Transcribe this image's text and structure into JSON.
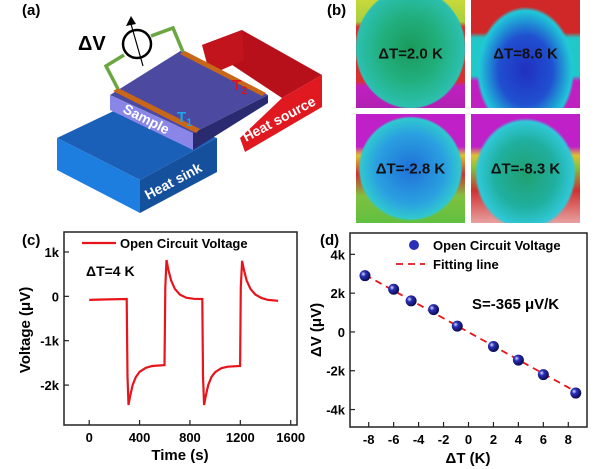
{
  "panels": {
    "a": {
      "label": "(a)",
      "delta_v": "ΔV",
      "sample": "Sample",
      "heat_sink": "Heat sink",
      "heat_source": "Heat source",
      "t1": "T",
      "t1_sub": "1",
      "t2": "T",
      "t2_sub": "2",
      "colors": {
        "heat_sink": "#1f6fd6",
        "heat_source": "#d8101a",
        "sample": "#4b4aa0",
        "electrode": "#c8661a",
        "wire": "#6aa641",
        "t1": "#1aa7e6",
        "t2": "#e0101a"
      }
    },
    "b": {
      "label": "(b)",
      "images": [
        {
          "text": "ΔT=2.0 K"
        },
        {
          "text": "ΔT=8.6 K"
        },
        {
          "text": "ΔT=-2.8 K"
        },
        {
          "text": "ΔT=-8.3 K"
        }
      ]
    },
    "c": {
      "label": "(c)"
    },
    "d": {
      "label": "(d)"
    }
  },
  "chart_data": [
    {
      "type": "line",
      "xlabel": "Time (s)",
      "ylabel": "Voltage (μV)",
      "xlim": [
        -200,
        1650
      ],
      "ylim": [
        -2900,
        1450
      ],
      "xticks": [
        0,
        400,
        800,
        1200,
        1600
      ],
      "xtick_labels": [
        "0",
        "400",
        "800",
        "1200",
        "1600"
      ],
      "yticks": [
        1000,
        0,
        -1000,
        -2000
      ],
      "ytick_labels": [
        "1k",
        "0",
        "-1k",
        "-2k"
      ],
      "annotation": "ΔT=4 K",
      "legend": "top",
      "grid": false,
      "series": [
        {
          "name": "Open Circuit Voltage",
          "color": "#e8141b",
          "points": [
            [
              0,
              -80
            ],
            [
              150,
              -70
            ],
            [
              298,
              -60
            ],
            [
              304,
              -1800
            ],
            [
              312,
              -2450
            ],
            [
              325,
              -2250
            ],
            [
              345,
              -2000
            ],
            [
              370,
              -1820
            ],
            [
              400,
              -1700
            ],
            [
              450,
              -1610
            ],
            [
              500,
              -1570
            ],
            [
              598,
              -1550
            ],
            [
              604,
              200
            ],
            [
              614,
              820
            ],
            [
              628,
              600
            ],
            [
              650,
              360
            ],
            [
              680,
              170
            ],
            [
              720,
              40
            ],
            [
              770,
              -30
            ],
            [
              830,
              -55
            ],
            [
              898,
              -60
            ],
            [
              904,
              -1800
            ],
            [
              912,
              -2450
            ],
            [
              925,
              -2250
            ],
            [
              945,
              -2000
            ],
            [
              970,
              -1820
            ],
            [
              1000,
              -1710
            ],
            [
              1050,
              -1620
            ],
            [
              1100,
              -1585
            ],
            [
              1198,
              -1570
            ],
            [
              1204,
              200
            ],
            [
              1214,
              800
            ],
            [
              1228,
              600
            ],
            [
              1250,
              360
            ],
            [
              1280,
              170
            ],
            [
              1320,
              40
            ],
            [
              1370,
              -40
            ],
            [
              1420,
              -80
            ],
            [
              1500,
              -100
            ]
          ]
        }
      ]
    },
    {
      "type": "scatter",
      "xlabel": "ΔT (K)",
      "ylabel": "ΔV (μV)",
      "xlim": [
        -9.5,
        9.5
      ],
      "ylim": [
        -4900,
        5100
      ],
      "xticks": [
        -8,
        -6,
        -4,
        -2,
        0,
        2,
        4,
        6,
        8
      ],
      "xtick_labels": [
        "-8",
        "-6",
        "-4",
        "-2",
        "0",
        "2",
        "4",
        "6",
        "8"
      ],
      "yticks": [
        4000,
        2000,
        0,
        -2000,
        -4000
      ],
      "ytick_labels": [
        "4k",
        "2k",
        "0",
        "-2k",
        "-4k"
      ],
      "annotation": "S=-365 μV/K",
      "legend": "top-right",
      "grid": false,
      "series": [
        {
          "name": "Open Circuit Voltage",
          "color": "#2a2fb8",
          "x": [
            -8.3,
            -6.0,
            -4.6,
            -2.8,
            -0.9,
            2.0,
            4.0,
            6.0,
            8.6
          ],
          "y": [
            2900,
            2200,
            1600,
            1150,
            300,
            -750,
            -1450,
            -2200,
            -3150
          ]
        },
        {
          "name": "Fitting line",
          "color": "#e8141b",
          "style": "dashed",
          "x": [
            -8.3,
            8.8
          ],
          "y": [
            2950,
            -3150
          ]
        }
      ]
    }
  ]
}
